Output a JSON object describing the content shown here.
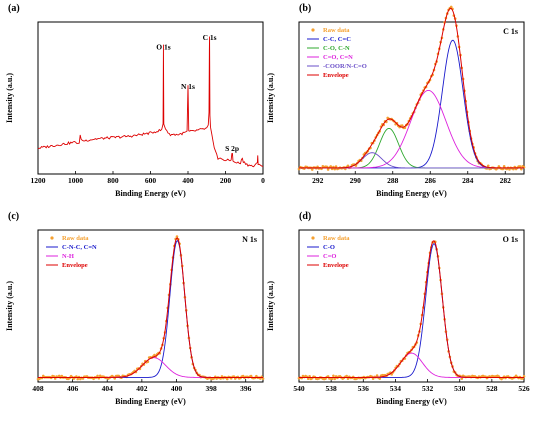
{
  "chart_data": [
    {
      "type": "line",
      "panel": "(a)",
      "xlabel": "Binding Energy (eV)",
      "ylabel": "Intensity (a.u.)",
      "xlim": [
        1200,
        0
      ],
      "ylim": [
        0,
        100
      ],
      "xticks": [
        1200,
        1000,
        800,
        600,
        400,
        200,
        0
      ],
      "grid": false,
      "annotations": [
        {
          "text": "O 1s",
          "x": 531,
          "y": 82
        },
        {
          "text": "N 1s",
          "x": 400,
          "y": 56
        },
        {
          "text": "C 1s",
          "x": 285,
          "y": 88
        },
        {
          "text": "S 2p",
          "x": 165,
          "y": 15
        }
      ],
      "series": [
        {
          "color": "#dd0000",
          "points": [
            [
              1200,
              17
            ],
            [
              1100,
              19
            ],
            [
              1000,
              21
            ],
            [
              980,
              20
            ],
            [
              975,
              25
            ],
            [
              965,
              22
            ],
            [
              950,
              22
            ],
            [
              900,
              23
            ],
            [
              800,
              24
            ],
            [
              700,
              25
            ],
            [
              600,
              27
            ],
            [
              540,
              29
            ],
            [
              533,
              33
            ],
            [
              531,
              85
            ],
            [
              529,
              33
            ],
            [
              520,
              30
            ],
            [
              500,
              26
            ],
            [
              450,
              26
            ],
            [
              420,
              27
            ],
            [
              405,
              28
            ],
            [
              400,
              58
            ],
            [
              396,
              28
            ],
            [
              380,
              28
            ],
            [
              340,
              29
            ],
            [
              300,
              30
            ],
            [
              292,
              32
            ],
            [
              288,
              40
            ],
            [
              286,
              82
            ],
            [
              285,
              90
            ],
            [
              283,
              38
            ],
            [
              280,
              30
            ],
            [
              260,
              18
            ],
            [
              240,
              10
            ],
            [
              220,
              10
            ],
            [
              200,
              9
            ],
            [
              170,
              9
            ],
            [
              166,
              14
            ],
            [
              163,
              14
            ],
            [
              160,
              8
            ],
            [
              120,
              7
            ],
            [
              110,
              11
            ],
            [
              105,
              8
            ],
            [
              80,
              6
            ],
            [
              50,
              5
            ],
            [
              30,
              7
            ],
            [
              28,
              12
            ],
            [
              26,
              7
            ],
            [
              0,
              5
            ]
          ]
        }
      ]
    },
    {
      "type": "line",
      "panel": "(b)",
      "corner_label": "C 1s",
      "xlabel": "Binding Energy (eV)",
      "ylabel": "Intensity (a.u.)",
      "xlim": [
        293,
        281
      ],
      "ylim": [
        0,
        100
      ],
      "xticks": [
        292,
        290,
        288,
        286,
        284,
        282
      ],
      "grid": false,
      "legend": {
        "position": "top-left",
        "entries": [
          {
            "label": "Raw data",
            "color": "#f5a030",
            "marker": "dot"
          },
          {
            "label": "C-C, C=C",
            "color": "#1a1acc"
          },
          {
            "label": "C-O, C-N",
            "color": "#2fa82f"
          },
          {
            "label": "C=O, C=N",
            "color": "#dd22dd"
          },
          {
            "label": "-COOR/N-C=O",
            "color": "#6a4fc8"
          },
          {
            "label": "Envelope",
            "color": "#dd0000"
          }
        ]
      },
      "baseline": 4,
      "components": [
        {
          "name": "C-C, C=C",
          "color": "#1a1acc",
          "center": 284.8,
          "height": 84,
          "fwhm": 1.3
        },
        {
          "name": "C-O, C-N",
          "color": "#2fa82f",
          "center": 288.2,
          "height": 26,
          "fwhm": 1.2
        },
        {
          "name": "C=O, C=N",
          "color": "#dd22dd",
          "center": 286.1,
          "height": 51,
          "fwhm": 2.2
        },
        {
          "name": "-COOR/N-C=O",
          "color": "#6a4fc8",
          "center": 289.1,
          "height": 10,
          "fwhm": 1.2
        }
      ],
      "raw_points": 170
    },
    {
      "type": "line",
      "panel": "(c)",
      "corner_label": "N 1s",
      "xlabel": "Binding Energy (eV)",
      "ylabel": "Intensity (a.u.)",
      "xlim": [
        408,
        395
      ],
      "ylim": [
        0,
        100
      ],
      "xticks": [
        408,
        406,
        404,
        402,
        400,
        398,
        396
      ],
      "grid": false,
      "legend": {
        "position": "top-left",
        "entries": [
          {
            "label": "Raw data",
            "color": "#f5a030",
            "marker": "dot"
          },
          {
            "label": "C-N-C, C=N",
            "color": "#1a1acc"
          },
          {
            "label": "N-H",
            "color": "#dd22dd"
          },
          {
            "label": "Envelope",
            "color": "#dd0000"
          }
        ]
      },
      "baseline": 3,
      "components": [
        {
          "name": "C-N-C, C=N",
          "color": "#1a1acc",
          "center": 399.95,
          "height": 90,
          "fwhm": 1.0
        },
        {
          "name": "N-H",
          "color": "#dd22dd",
          "center": 401.3,
          "height": 13,
          "fwhm": 1.6
        }
      ],
      "raw_points": 170
    },
    {
      "type": "line",
      "panel": "(d)",
      "corner_label": "O 1s",
      "xlabel": "Binding Energy (eV)",
      "ylabel": "Intensity (a.u.)",
      "xlim": [
        540,
        526
      ],
      "ylim": [
        0,
        100
      ],
      "xticks": [
        540,
        538,
        536,
        534,
        532,
        530,
        528,
        526
      ],
      "grid": false,
      "legend": {
        "position": "top-left",
        "entries": [
          {
            "label": "Raw data",
            "color": "#f5a030",
            "marker": "dot"
          },
          {
            "label": "C-O",
            "color": "#1a1acc"
          },
          {
            "label": "C=O",
            "color": "#dd22dd"
          },
          {
            "label": "Envelope",
            "color": "#dd0000"
          }
        ]
      },
      "baseline": 3,
      "components": [
        {
          "name": "C-O",
          "color": "#1a1acc",
          "center": 531.6,
          "height": 88,
          "fwhm": 1.2
        },
        {
          "name": "C=O",
          "color": "#dd22dd",
          "center": 533.0,
          "height": 16,
          "fwhm": 1.6
        }
      ],
      "raw_points": 170
    }
  ]
}
